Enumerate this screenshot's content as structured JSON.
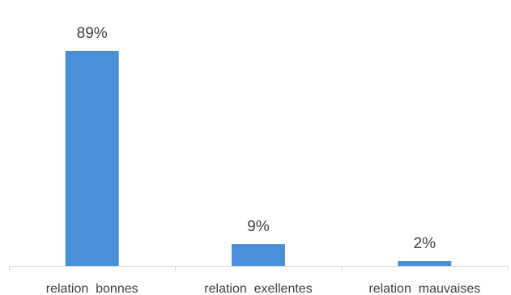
{
  "chart_data": {
    "type": "bar",
    "title": "",
    "xlabel": "",
    "ylabel": "",
    "categories": [
      "relation  bonnes",
      "relation  exellentes",
      "relation  mauvaises"
    ],
    "values": [
      89,
      9,
      2
    ],
    "data_labels": [
      "89%",
      "9%",
      "2%"
    ],
    "unit": "%",
    "ylim": [
      0,
      100
    ],
    "grid": false,
    "legend": "none",
    "y_axis_visible": false,
    "bar_color": "#4a90d9",
    "axis_color": "#d9d9d9",
    "label_color": "#404040"
  }
}
